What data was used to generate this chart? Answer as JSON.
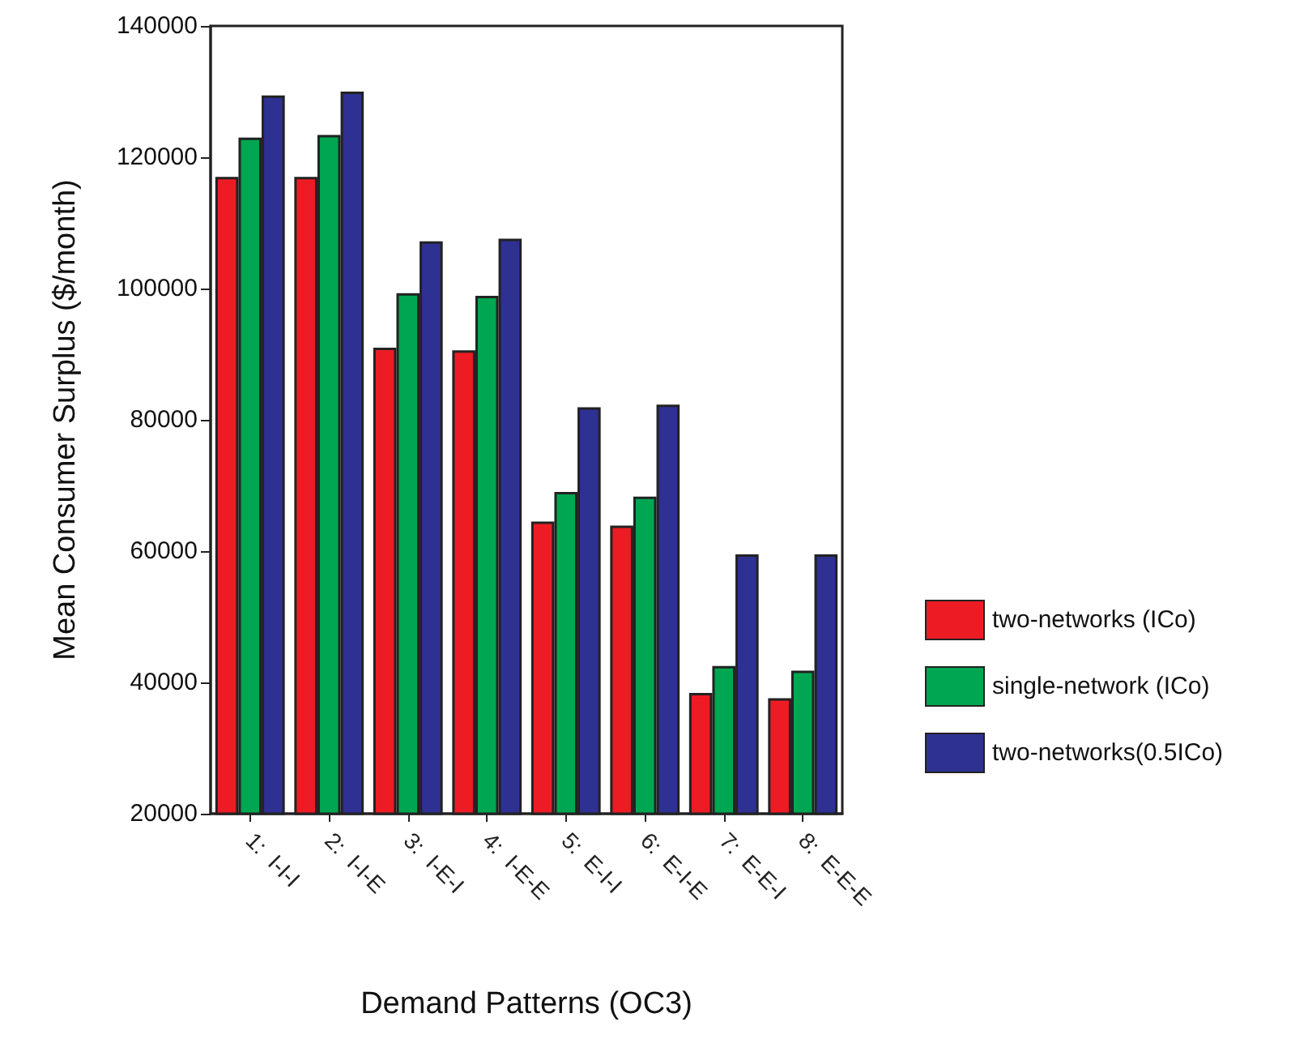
{
  "chart_data": {
    "type": "bar",
    "xlabel": "Demand Patterns (OC3)",
    "ylabel": "Mean Consumer Surplus ($/month)",
    "categories": [
      "1:  I-I-I",
      "2:  I-I-E",
      "3:  I-E-I",
      "4:  I-E-E",
      "5:  E-I-I",
      "6:  E-I-E",
      "7:  E-E-I",
      "8:  E-E-E"
    ],
    "series": [
      {
        "name": "two-networks (ICo)",
        "color": "#ed1c24",
        "values": [
          117000,
          117000,
          91000,
          90600,
          64500,
          63900,
          38400,
          37600
        ]
      },
      {
        "name": "single-network (ICo)",
        "color": "#00a651",
        "values": [
          123000,
          123400,
          99300,
          98900,
          69000,
          68300,
          42500,
          41800
        ]
      },
      {
        "name": "two-networks(0.5ICo)",
        "color": "#2e3192",
        "values": [
          129400,
          130000,
          107200,
          107600,
          81900,
          82300,
          59500,
          59500
        ]
      }
    ],
    "ylim": [
      20000,
      140000
    ],
    "yticks": [
      20000,
      40000,
      60000,
      80000,
      100000,
      120000,
      140000
    ],
    "grid": false,
    "legend": "right"
  }
}
